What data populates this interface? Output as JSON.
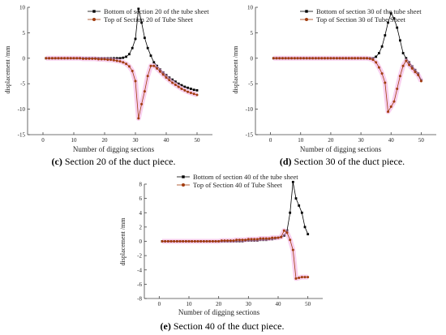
{
  "colors": {
    "bottom_series": "#000000",
    "top_series": "#a23c0f",
    "top_series_band": "#f2a9e2",
    "axis": "#444444"
  },
  "chart_data": [
    {
      "type": "line",
      "caption": {
        "letter": "(c)",
        "text": "Section 20 of the duct piece."
      },
      "xlabel": "Number of digging sections",
      "ylabel": "displacement /mm",
      "xlim": [
        -5,
        55
      ],
      "ylim": [
        -15,
        10
      ],
      "xticks": [
        0,
        10,
        20,
        30,
        40,
        50
      ],
      "yticks": [
        -15,
        -10,
        -5,
        0,
        5,
        10
      ],
      "grid": false,
      "legend": "top-center",
      "x": [
        1,
        2,
        3,
        4,
        5,
        6,
        7,
        8,
        9,
        10,
        11,
        12,
        13,
        14,
        15,
        16,
        17,
        18,
        19,
        20,
        21,
        22,
        23,
        24,
        25,
        26,
        27,
        28,
        29,
        30,
        31,
        32,
        33,
        34,
        35,
        36,
        37,
        38,
        39,
        40,
        41,
        42,
        43,
        44,
        45,
        46,
        47,
        48,
        49,
        50
      ],
      "series": [
        {
          "name": "Bottom of section 20 of the tube sheet",
          "marker": "square",
          "values": [
            0,
            0,
            0,
            0,
            0,
            0,
            0,
            0,
            0,
            0,
            0,
            0,
            0,
            0,
            0,
            0,
            0,
            0,
            0,
            0,
            0,
            0,
            0,
            0,
            0,
            0.1,
            0.3,
            0.8,
            2,
            3.8,
            9.7,
            7,
            4,
            2,
            0.5,
            -0.8,
            -1.5,
            -2.2,
            -2.8,
            -3.3,
            -3.8,
            -4.2,
            -4.6,
            -5,
            -5.3,
            -5.6,
            -5.8,
            -6,
            -6.2,
            -6.3
          ]
        },
        {
          "name": "Top of Section 20 of Tube Sheet",
          "marker": "circle",
          "values": [
            0,
            0,
            0,
            0,
            0,
            0,
            0,
            0,
            0,
            0,
            0,
            0,
            -0.1,
            -0.1,
            -0.1,
            -0.1,
            -0.1,
            -0.2,
            -0.2,
            -0.2,
            -0.3,
            -0.3,
            -0.4,
            -0.5,
            -0.6,
            -0.8,
            -1.1,
            -1.6,
            -2.5,
            -4.5,
            -11.8,
            -9,
            -6.5,
            -3.5,
            -1.5,
            -1.5,
            -2,
            -2.6,
            -3.2,
            -3.8,
            -4.3,
            -4.8,
            -5.2,
            -5.6,
            -6,
            -6.3,
            -6.6,
            -6.8,
            -7,
            -7.2
          ]
        }
      ]
    },
    {
      "type": "line",
      "caption": {
        "letter": "(d)",
        "text": "Section 30 of the duct piece."
      },
      "xlabel": "Number of digging sections",
      "ylabel": "displacement /mm",
      "xlim": [
        -5,
        55
      ],
      "ylim": [
        -15,
        10
      ],
      "xticks": [
        0,
        10,
        20,
        30,
        40,
        50
      ],
      "yticks": [
        -15,
        -10,
        -5,
        0,
        5,
        10
      ],
      "grid": false,
      "legend": "top-center",
      "x": [
        1,
        2,
        3,
        4,
        5,
        6,
        7,
        8,
        9,
        10,
        11,
        12,
        13,
        14,
        15,
        16,
        17,
        18,
        19,
        20,
        21,
        22,
        23,
        24,
        25,
        26,
        27,
        28,
        29,
        30,
        31,
        32,
        33,
        34,
        35,
        36,
        37,
        38,
        39,
        40,
        41,
        42,
        43,
        44,
        45,
        46,
        47,
        48,
        49,
        50
      ],
      "series": [
        {
          "name": "Bottom of section 30 of the tube sheet",
          "marker": "square",
          "values": [
            0,
            0,
            0,
            0,
            0,
            0,
            0,
            0,
            0,
            0,
            0,
            0,
            0,
            0,
            0,
            0,
            0,
            0,
            0,
            0,
            0,
            0,
            0,
            0,
            0,
            0,
            0,
            0,
            0,
            0,
            0,
            0,
            0,
            0,
            0.3,
            1,
            2.3,
            4.5,
            7,
            8.8,
            7.8,
            6,
            3.5,
            1,
            0,
            -0.8,
            -1.6,
            -2.3,
            -3,
            -4.3
          ]
        },
        {
          "name": "Top of Section 30 of Tube Sheet",
          "marker": "circle",
          "values": [
            0,
            0,
            0,
            0,
            0,
            0,
            0,
            0,
            0,
            0,
            0,
            0,
            0,
            0,
            0,
            0,
            0,
            0,
            0,
            0,
            0,
            0,
            0,
            0,
            0,
            0,
            0,
            0,
            0,
            0,
            0,
            0,
            -0.1,
            -0.3,
            -0.8,
            -1.8,
            -3,
            -4.8,
            -10.5,
            -9.5,
            -8.5,
            -6,
            -3.5,
            -1.5,
            -0.5,
            -1.3,
            -2,
            -2.7,
            -3.3,
            -4.5
          ]
        }
      ]
    },
    {
      "type": "line",
      "caption": {
        "letter": "(e)",
        "text": "Section 40 of the duct piece."
      },
      "xlabel": "Number of digging sections",
      "ylabel": "displacement /mm",
      "xlim": [
        -5,
        55
      ],
      "ylim": [
        -8,
        8
      ],
      "xticks": [
        0,
        10,
        20,
        30,
        40,
        50
      ],
      "yticks": [
        -8,
        -6,
        -4,
        -2,
        0,
        2,
        4,
        6,
        8
      ],
      "grid": false,
      "legend": "top-center",
      "x": [
        1,
        2,
        3,
        4,
        5,
        6,
        7,
        8,
        9,
        10,
        11,
        12,
        13,
        14,
        15,
        16,
        17,
        18,
        19,
        20,
        21,
        22,
        23,
        24,
        25,
        26,
        27,
        28,
        29,
        30,
        31,
        32,
        33,
        34,
        35,
        36,
        37,
        38,
        39,
        40,
        41,
        42,
        43,
        44,
        45,
        46,
        47,
        48,
        49,
        50
      ],
      "series": [
        {
          "name": "Bottom of section 40 of the tube sheet",
          "marker": "square",
          "values": [
            0,
            0,
            0,
            0,
            0,
            0,
            0,
            0,
            0,
            0,
            0,
            0,
            0,
            0,
            0,
            0,
            0,
            0,
            0,
            0,
            0,
            0,
            0,
            0,
            0,
            0,
            0,
            0,
            0.1,
            0.1,
            0.1,
            0.1,
            0.1,
            0.2,
            0.2,
            0.2,
            0.3,
            0.3,
            0.4,
            0.5,
            0.6,
            0.8,
            1.5,
            4,
            8.3,
            6,
            5,
            4,
            2,
            1
          ]
        },
        {
          "name": "Top of Section 40 of Tube Sheet",
          "marker": "circle",
          "values": [
            0,
            0,
            0,
            0,
            0,
            0,
            0,
            0,
            0,
            0,
            0,
            0,
            0,
            0,
            0,
            0,
            0,
            0,
            0,
            0,
            0.1,
            0.1,
            0.1,
            0.1,
            0.1,
            0.2,
            0.2,
            0.2,
            0.2,
            0.3,
            0.3,
            0.3,
            0.3,
            0.4,
            0.4,
            0.4,
            0.4,
            0.5,
            0.5,
            0.5,
            0.6,
            1.5,
            1.2,
            0.2,
            -1.2,
            -5.2,
            -5.1,
            -5,
            -5,
            -5
          ]
        }
      ]
    }
  ]
}
